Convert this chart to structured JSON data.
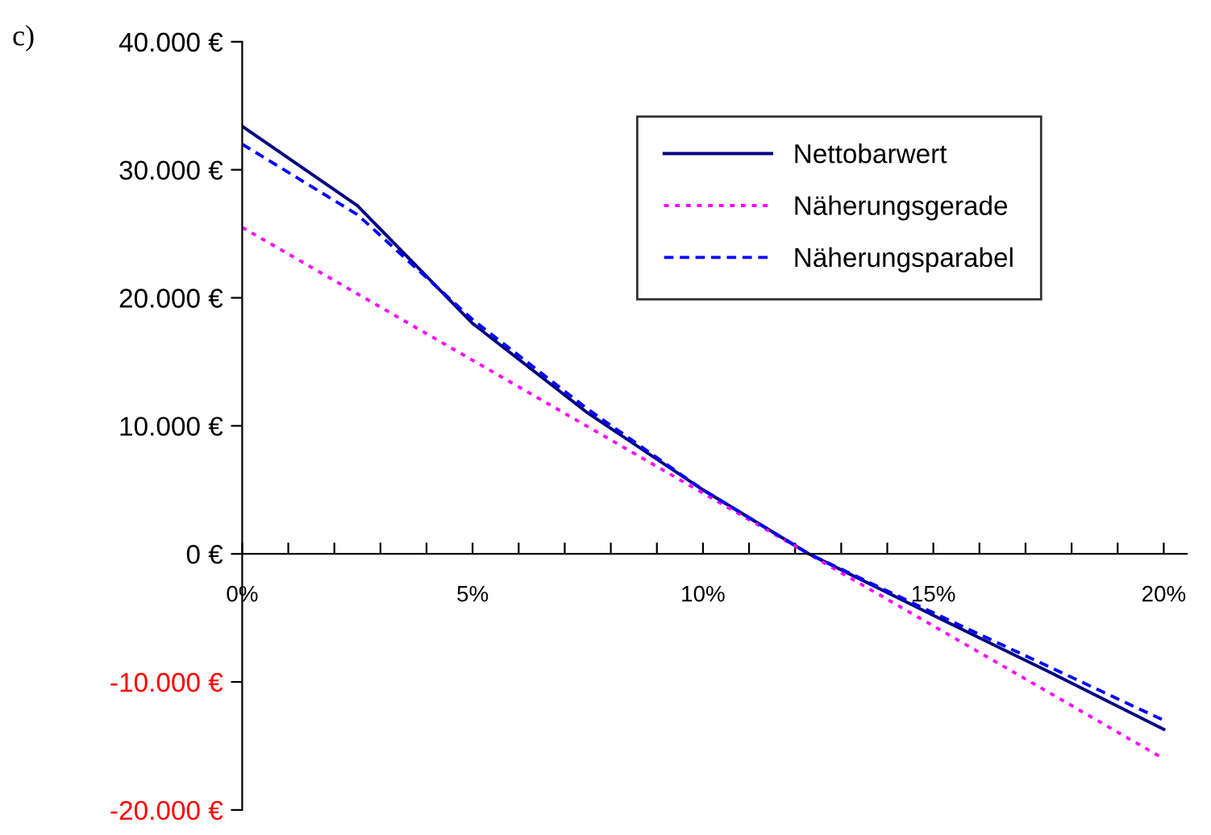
{
  "chart_data": {
    "type": "line",
    "annotations": [
      "c)"
    ],
    "xlim": [
      0,
      20.5
    ],
    "ylim": [
      -20000,
      40000
    ],
    "xticks": [
      {
        "value": 0,
        "label": "0%"
      },
      {
        "value": 1,
        "label": null
      },
      {
        "value": 2,
        "label": null
      },
      {
        "value": 3,
        "label": null
      },
      {
        "value": 4,
        "label": null
      },
      {
        "value": 5,
        "label": "5%"
      },
      {
        "value": 6,
        "label": null
      },
      {
        "value": 7,
        "label": null
      },
      {
        "value": 8,
        "label": null
      },
      {
        "value": 9,
        "label": null
      },
      {
        "value": 10,
        "label": "10%"
      },
      {
        "value": 11,
        "label": null
      },
      {
        "value": 12,
        "label": null
      },
      {
        "value": 13,
        "label": null
      },
      {
        "value": 14,
        "label": null
      },
      {
        "value": 15,
        "label": "15%"
      },
      {
        "value": 16,
        "label": null
      },
      {
        "value": 17,
        "label": null
      },
      {
        "value": 18,
        "label": null
      },
      {
        "value": 19,
        "label": null
      },
      {
        "value": 20,
        "label": "20%"
      }
    ],
    "yticks": [
      {
        "value": -20000,
        "label": "-20.000 €"
      },
      {
        "value": -10000,
        "label": "-10.000 €"
      },
      {
        "value": 0,
        "label": "0 €"
      },
      {
        "value": 10000,
        "label": "10.000 €"
      },
      {
        "value": 20000,
        "label": "20.000 €"
      },
      {
        "value": 30000,
        "label": "30.000 €"
      },
      {
        "value": 40000,
        "label": "40.000 €"
      }
    ],
    "grid": false,
    "legend": "top right",
    "marker": "none",
    "series": [
      {
        "name": "Nettobarwert",
        "color": "#000080",
        "line_style": "solid",
        "x": [
          0,
          2.5,
          5,
          7.5,
          10,
          12.3,
          15,
          17.5,
          20
        ],
        "values": [
          33400,
          27200,
          18000,
          11000,
          5000,
          0,
          -4800,
          -9200,
          -13700
        ]
      },
      {
        "name": "Näherungsgerade",
        "color": "#ff00ff",
        "line_style": "dotted",
        "x": [
          0,
          20
        ],
        "values": [
          25500,
          -16000
        ]
      },
      {
        "name": "Näherungsparabel",
        "color": "#0000ff",
        "line_style": "dashed",
        "x": [
          0,
          2.5,
          5,
          7.5,
          10,
          12.3,
          15,
          17.5,
          20
        ],
        "values": [
          32000,
          26500,
          18300,
          11300,
          5000,
          0,
          -4600,
          -8800,
          -13000
        ]
      }
    ]
  }
}
